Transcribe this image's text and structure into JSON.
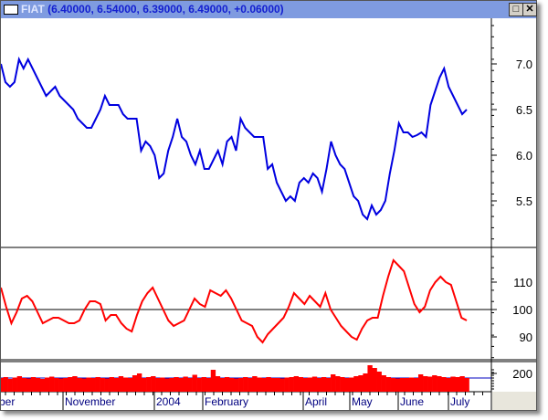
{
  "window": {
    "symbol": "FIAT",
    "quote": "(6.40000, 6.54000, 6.39000, 6.49000, +0.06000)",
    "maximize_icon": "maximize-icon",
    "close_icon": "close-icon"
  },
  "chart_data": [
    {
      "type": "line",
      "pane": "price",
      "color": "#0000e0",
      "ylim": [
        5.0,
        7.5
      ],
      "y_ticks": [
        "7.0",
        "6.5",
        "6.0",
        "5.5"
      ],
      "values": [
        7.0,
        6.8,
        6.75,
        6.8,
        7.05,
        6.95,
        7.05,
        6.95,
        6.85,
        6.75,
        6.65,
        6.7,
        6.75,
        6.65,
        6.6,
        6.55,
        6.5,
        6.4,
        6.35,
        6.3,
        6.3,
        6.4,
        6.5,
        6.65,
        6.55,
        6.55,
        6.55,
        6.45,
        6.4,
        6.4,
        6.4,
        6.05,
        6.15,
        6.1,
        6.0,
        5.75,
        5.8,
        6.05,
        6.2,
        6.4,
        6.2,
        6.15,
        6.0,
        5.9,
        6.05,
        5.85,
        5.85,
        5.95,
        6.05,
        5.9,
        6.15,
        6.2,
        6.05,
        6.4,
        6.3,
        6.25,
        6.2,
        6.2,
        6.2,
        5.85,
        5.9,
        5.7,
        5.6,
        5.5,
        5.55,
        5.5,
        5.7,
        5.75,
        5.7,
        5.8,
        5.75,
        5.6,
        5.85,
        6.15,
        6.0,
        5.9,
        5.85,
        5.7,
        5.55,
        5.5,
        5.35,
        5.3,
        5.45,
        5.35,
        5.4,
        5.5,
        5.8,
        6.05,
        6.35,
        6.25,
        6.25,
        6.2,
        6.22,
        6.25,
        6.2,
        6.55,
        6.7,
        6.85,
        6.95,
        6.75,
        6.65,
        6.55,
        6.45,
        6.5
      ]
    },
    {
      "type": "line",
      "pane": "oscillator",
      "color": "#ff0000",
      "ylim": [
        82,
        122
      ],
      "reference_line": 100,
      "y_ticks": [
        "110",
        "100",
        "90"
      ],
      "values": [
        108,
        101,
        95,
        99,
        104,
        105,
        103,
        99,
        95,
        96,
        97,
        97,
        96,
        95,
        95,
        96,
        100,
        103,
        103,
        102,
        96,
        98,
        98,
        95,
        93,
        92,
        98,
        103,
        106,
        108,
        104,
        100,
        96,
        94,
        95,
        96,
        100,
        104,
        102,
        101,
        107,
        106,
        105,
        107,
        104,
        100,
        96,
        95,
        94,
        90,
        88,
        91,
        93,
        95,
        97,
        101,
        106,
        104,
        102,
        105,
        103,
        101,
        106,
        100,
        97,
        94,
        92,
        90,
        89,
        93,
        96,
        97,
        97,
        105,
        112,
        118,
        116,
        114,
        108,
        102,
        99,
        101,
        107,
        110,
        112,
        110,
        109,
        103,
        97,
        96
      ]
    },
    {
      "type": "bar",
      "pane": "volume",
      "color": "#ff0000",
      "reference_line": 150,
      "ylim": [
        0,
        320
      ],
      "y_ticks": [
        "200"
      ],
      "values": [
        150,
        160,
        140,
        155,
        170,
        150,
        145,
        160,
        150,
        140,
        155,
        165,
        150,
        145,
        150,
        160,
        170,
        150,
        145,
        155,
        150,
        160,
        150,
        145,
        160,
        150,
        170,
        155,
        150,
        180,
        200,
        150,
        160,
        170,
        150,
        155,
        145,
        150,
        160,
        150,
        165,
        150,
        185,
        150,
        160,
        150,
        240,
        170,
        150,
        160,
        150,
        145,
        150,
        160,
        150,
        170,
        155,
        150,
        160,
        150,
        150,
        145,
        155,
        160,
        170,
        160,
        150,
        155,
        165,
        150,
        160,
        150,
        190,
        170,
        160,
        150,
        155,
        170,
        180,
        200,
        290,
        260,
        220,
        180,
        160,
        150,
        145,
        150,
        150,
        155,
        150,
        190,
        170,
        165,
        180,
        170,
        160,
        150,
        165,
        160,
        170,
        150
      ]
    }
  ],
  "x_labels": [
    "ber",
    "November",
    "2004",
    "February",
    "April",
    "May",
    "June",
    "July"
  ]
}
